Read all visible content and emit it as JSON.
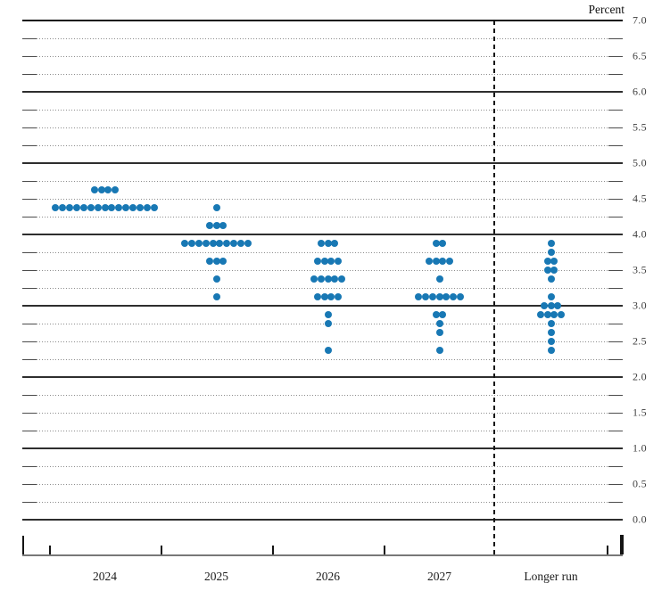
{
  "header": {
    "y_axis_title": "Percent"
  },
  "y_axis": {
    "tick_labels": [
      "7.0",
      "6.5",
      "6.0",
      "5.5",
      "5.0",
      "4.5",
      "4.0",
      "3.5",
      "3.0",
      "2.5",
      "2.0",
      "1.5",
      "1.0",
      "0.5",
      "0.0"
    ]
  },
  "x_axis": {
    "categories": [
      "2024",
      "2025",
      "2026",
      "2027",
      "Longer run"
    ]
  },
  "colors": {
    "dot_blue": "#1878b4",
    "solid_gridline": "#2e2e2e",
    "dotted_gridline": "#8d8d8d",
    "axis_line": "#787878",
    "divider_dash": "#151515"
  },
  "chart_data": {
    "type": "scatter",
    "title": "",
    "ylabel": "Percent",
    "ylim": [
      0.0,
      7.0
    ],
    "gridline_interval": 0.25,
    "label_interval": 0.5,
    "grid": true,
    "legend": null,
    "categories": [
      "2024",
      "2025",
      "2026",
      "2027",
      "Longer run"
    ],
    "series": [
      {
        "category": "2024",
        "dots": [
          {
            "rate": 4.625,
            "count": 4
          },
          {
            "rate": 4.375,
            "count": 15
          }
        ]
      },
      {
        "category": "2025",
        "dots": [
          {
            "rate": 4.375,
            "count": 1
          },
          {
            "rate": 4.125,
            "count": 3
          },
          {
            "rate": 3.875,
            "count": 10
          },
          {
            "rate": 3.625,
            "count": 3
          },
          {
            "rate": 3.375,
            "count": 1
          },
          {
            "rate": 3.125,
            "count": 1
          }
        ]
      },
      {
        "category": "2026",
        "dots": [
          {
            "rate": 3.875,
            "count": 3
          },
          {
            "rate": 3.625,
            "count": 4
          },
          {
            "rate": 3.375,
            "count": 5
          },
          {
            "rate": 3.125,
            "count": 4
          },
          {
            "rate": 2.875,
            "count": 1
          },
          {
            "rate": 2.75,
            "count": 1
          },
          {
            "rate": 2.375,
            "count": 1
          }
        ]
      },
      {
        "category": "2027",
        "dots": [
          {
            "rate": 3.875,
            "count": 2
          },
          {
            "rate": 3.625,
            "count": 4
          },
          {
            "rate": 3.375,
            "count": 1
          },
          {
            "rate": 3.125,
            "count": 7
          },
          {
            "rate": 2.875,
            "count": 2
          },
          {
            "rate": 2.75,
            "count": 1
          },
          {
            "rate": 2.625,
            "count": 1
          },
          {
            "rate": 2.375,
            "count": 1
          }
        ]
      },
      {
        "category": "Longer run",
        "dots": [
          {
            "rate": 3.875,
            "count": 1
          },
          {
            "rate": 3.75,
            "count": 1
          },
          {
            "rate": 3.625,
            "count": 2
          },
          {
            "rate": 3.5,
            "count": 2
          },
          {
            "rate": 3.375,
            "count": 1
          },
          {
            "rate": 3.125,
            "count": 1
          },
          {
            "rate": 3.0,
            "count": 3
          },
          {
            "rate": 2.875,
            "count": 4
          },
          {
            "rate": 2.75,
            "count": 1
          },
          {
            "rate": 2.625,
            "count": 1
          },
          {
            "rate": 2.5,
            "count": 1
          },
          {
            "rate": 2.375,
            "count": 1
          }
        ]
      }
    ]
  }
}
